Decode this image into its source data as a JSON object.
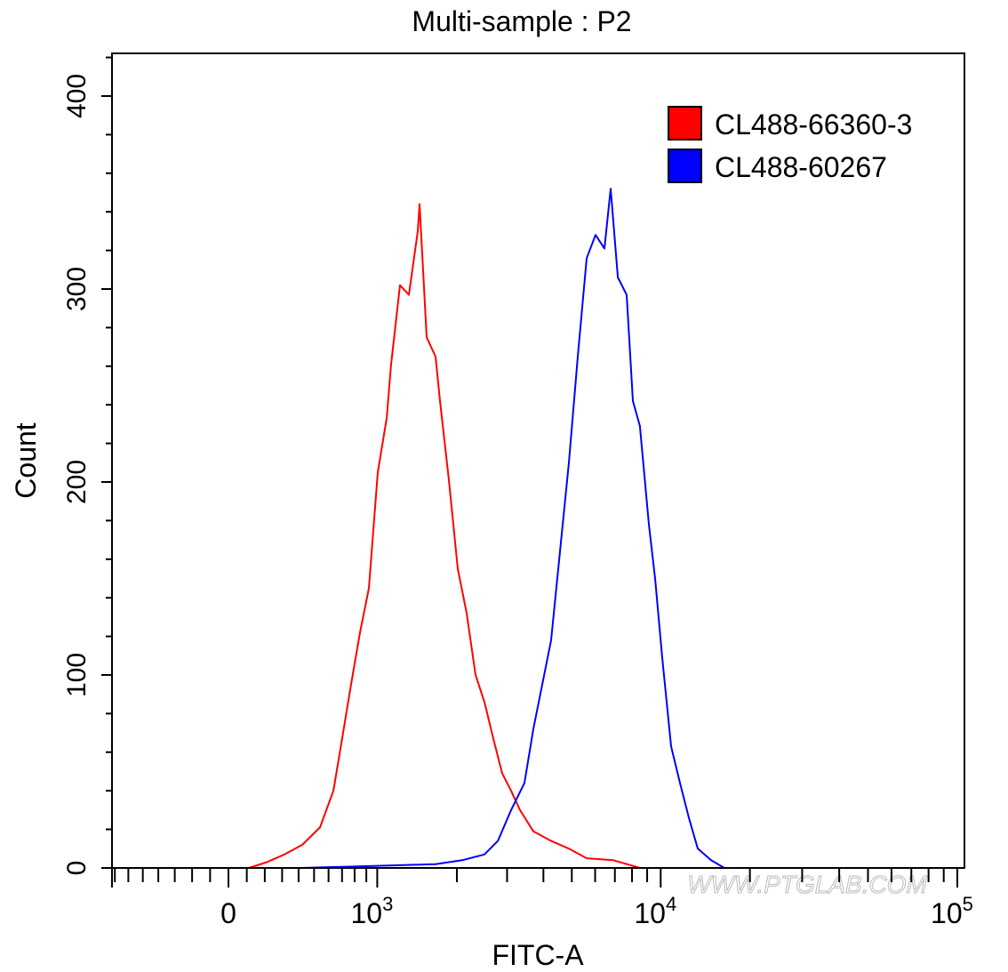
{
  "chart_data": {
    "type": "line",
    "title": "Multi-sample : P2",
    "xlabel": "FITC-A",
    "ylabel": "Count",
    "x_scale": "biexponential",
    "xlim": [
      -720,
      100000
    ],
    "ylim": [
      0,
      420
    ],
    "x_ticks": [
      {
        "value": 0,
        "label": "0",
        "sup": ""
      },
      {
        "value": 1000,
        "label": "10",
        "sup": "3"
      },
      {
        "value": 10000,
        "label": "10",
        "sup": "4"
      },
      {
        "value": 100000,
        "label": "10",
        "sup": "5"
      }
    ],
    "y_ticks": [
      {
        "value": 0,
        "label": "0"
      },
      {
        "value": 100,
        "label": "100"
      },
      {
        "value": 200,
        "label": "200"
      },
      {
        "value": 300,
        "label": "300"
      },
      {
        "value": 400,
        "label": "400"
      }
    ],
    "grid": false,
    "legend_position": "top-right",
    "series": [
      {
        "name": "CL488-66360-3",
        "color": "#ff0000",
        "x": [
          112,
          211,
          314,
          423,
          540,
          635,
          701,
          771,
          845,
          923,
          1005,
          1092,
          1137,
          1232,
          1333,
          1440,
          1462,
          1554,
          1675,
          1739,
          1873,
          2015,
          2167,
          2329,
          2503,
          2688,
          2886,
          3098,
          3324,
          3695,
          4250,
          4886,
          5616,
          6916,
          8510
        ],
        "y": [
          0,
          3,
          7,
          12,
          21,
          40,
          67,
          95,
          122,
          145,
          205,
          233,
          261,
          302,
          297,
          330,
          344,
          275,
          265,
          242,
          201,
          155,
          132,
          100,
          86,
          67,
          49,
          40,
          30,
          19,
          14,
          10,
          5,
          4,
          0
        ]
      },
      {
        "name": "CL488-60267",
        "color": "#0000ff",
        "x": [
          423,
          1675,
          2090,
          2503,
          2787,
          3098,
          3443,
          3695,
          3963,
          4250,
          4557,
          4886,
          5237,
          5616,
          6018,
          6454,
          6774,
          7163,
          7674,
          8055,
          8510,
          9120,
          9573,
          10120,
          10845,
          11620,
          12454,
          13344,
          14800,
          16400
        ],
        "y": [
          0,
          2,
          4,
          7,
          14,
          30,
          44,
          72,
          95,
          118,
          164,
          210,
          265,
          316,
          328,
          321,
          352,
          306,
          297,
          242,
          229,
          178,
          150,
          109,
          63,
          44,
          26,
          10,
          4,
          0
        ]
      }
    ],
    "watermark": "WWW.PTGLAB.COM"
  }
}
